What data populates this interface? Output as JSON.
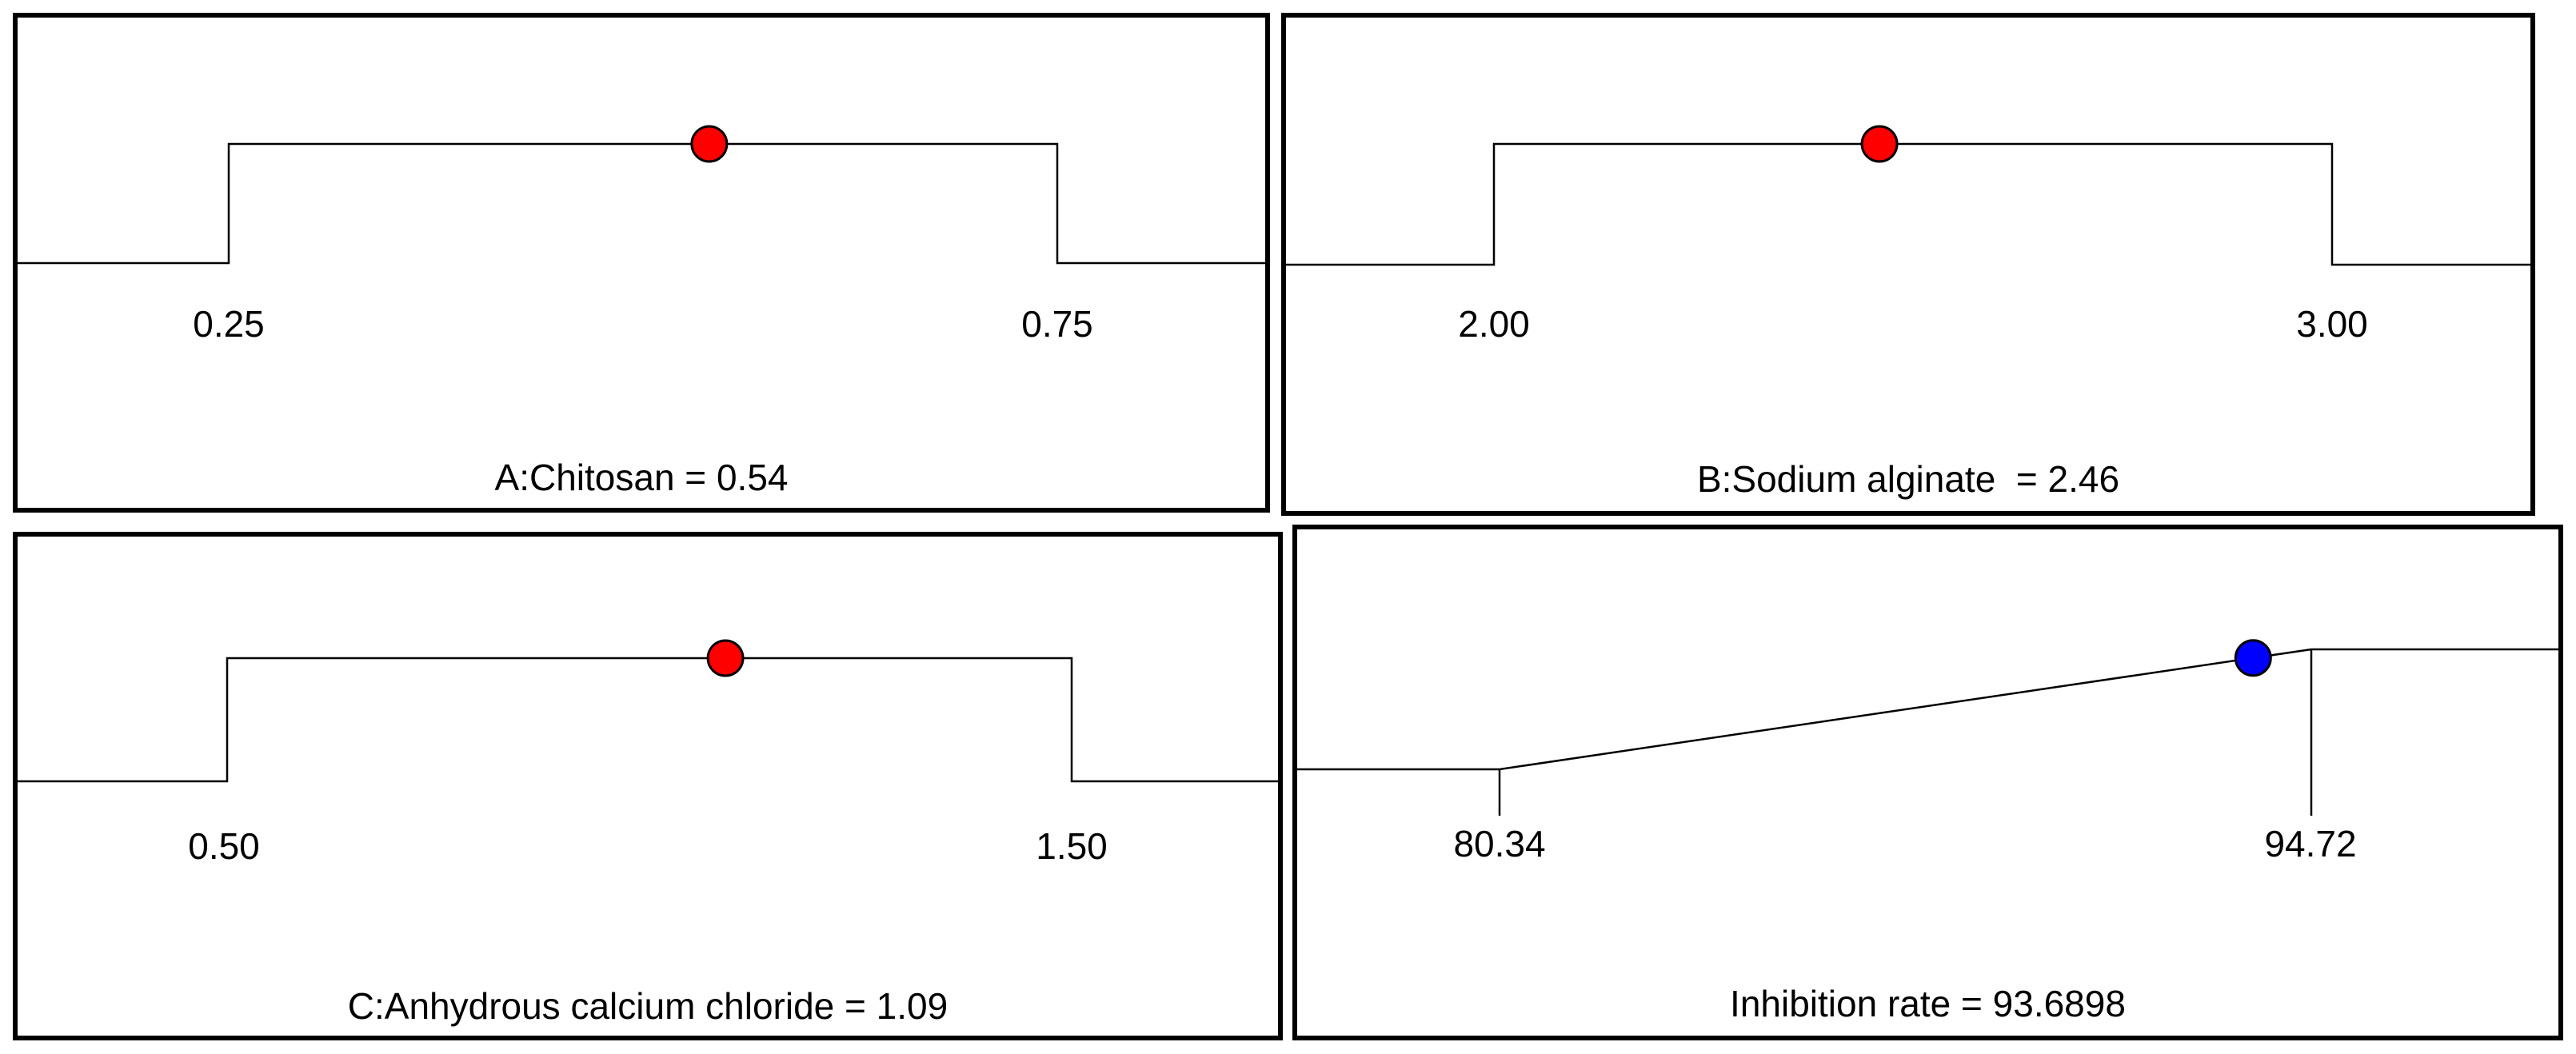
{
  "chart_data": [
    {
      "type": "desirability-ramp",
      "shape": "box",
      "factor": "A:Chitosan",
      "title": "A:Chitosan = 0.54",
      "low": 0.25,
      "high": 0.75,
      "low_label": "0.25",
      "high_label": "0.75",
      "value": 0.54,
      "marker_color": "#ff0000"
    },
    {
      "type": "desirability-ramp",
      "shape": "box",
      "factor": "B:Sodium alginate",
      "title": "B:Sodium alginate  = 2.46",
      "low": 2.0,
      "high": 3.0,
      "low_label": "2.00",
      "high_label": "3.00",
      "value": 2.46,
      "marker_color": "#ff0000"
    },
    {
      "type": "desirability-ramp",
      "shape": "box",
      "factor": "C:Anhydrous calcium chloride",
      "title": "C:Anhydrous calcium chloride = 1.09",
      "low": 0.5,
      "high": 1.5,
      "low_label": "0.50",
      "high_label": "1.50",
      "value": 1.09,
      "marker_color": "#ff0000"
    },
    {
      "type": "desirability-ramp",
      "shape": "ramp",
      "factor": "Inhibition rate",
      "title": "Inhibition rate = 93.6898",
      "low": 80.34,
      "high": 94.72,
      "low_label": "80.34",
      "high_label": "94.72",
      "value": 93.6898,
      "marker_color": "#0000ff"
    }
  ]
}
